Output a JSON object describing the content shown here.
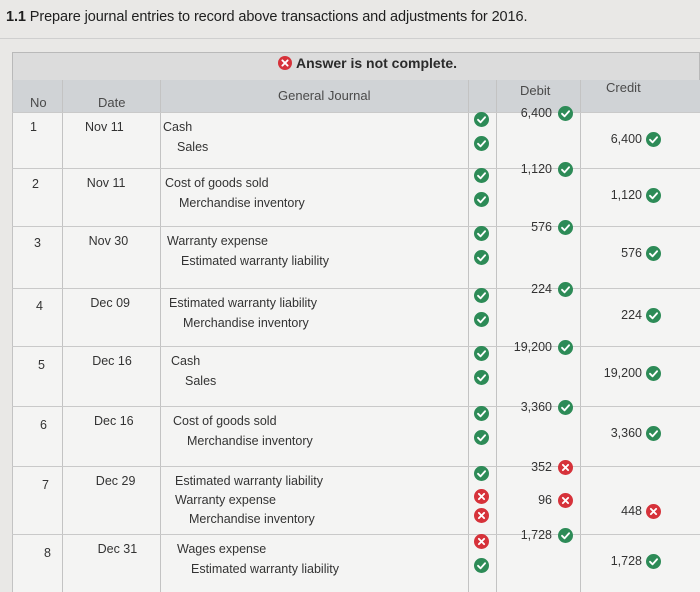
{
  "question": {
    "number": "1.1",
    "text": "Prepare journal entries to record above transactions and adjustments for 2016."
  },
  "banner": {
    "text": "Answer is not complete.",
    "icon": "x-circle-icon"
  },
  "headers": {
    "no": "No",
    "date": "Date",
    "journal": "General Journal",
    "debit": "Debit",
    "credit": "Credit"
  },
  "colors": {
    "correct": "#2d8b57",
    "incorrect": "#d6323a"
  },
  "entries": [
    {
      "no": "1",
      "date": "Nov 11",
      "lines": [
        {
          "account": "Cash",
          "indent": false,
          "status": "correct",
          "debit": "6,400",
          "debit_status": "correct",
          "credit": "",
          "credit_status": ""
        },
        {
          "account": "Sales",
          "indent": true,
          "status": "correct",
          "debit": "",
          "debit_status": "",
          "credit": "6,400",
          "credit_status": "correct"
        }
      ]
    },
    {
      "no": "2",
      "date": "Nov 11",
      "lines": [
        {
          "account": "Cost of goods sold",
          "indent": false,
          "status": "correct",
          "debit": "1,120",
          "debit_status": "correct",
          "credit": "",
          "credit_status": ""
        },
        {
          "account": "Merchandise inventory",
          "indent": true,
          "status": "correct",
          "debit": "",
          "debit_status": "",
          "credit": "1,120",
          "credit_status": "correct"
        }
      ]
    },
    {
      "no": "3",
      "date": "Nov 30",
      "lines": [
        {
          "account": "Warranty expense",
          "indent": false,
          "status": "correct",
          "debit": "576",
          "debit_status": "correct",
          "credit": "",
          "credit_status": ""
        },
        {
          "account": "Estimated warranty liability",
          "indent": true,
          "status": "correct",
          "debit": "",
          "debit_status": "",
          "credit": "576",
          "credit_status": "correct"
        }
      ]
    },
    {
      "no": "4",
      "date": "Dec 09",
      "lines": [
        {
          "account": "Estimated warranty liability",
          "indent": false,
          "status": "correct",
          "debit": "224",
          "debit_status": "correct",
          "credit": "",
          "credit_status": ""
        },
        {
          "account": "Merchandise inventory",
          "indent": true,
          "status": "correct",
          "debit": "",
          "debit_status": "",
          "credit": "224",
          "credit_status": "correct"
        }
      ]
    },
    {
      "no": "5",
      "date": "Dec 16",
      "lines": [
        {
          "account": "Cash",
          "indent": false,
          "status": "correct",
          "debit": "19,200",
          "debit_status": "correct",
          "credit": "",
          "credit_status": ""
        },
        {
          "account": "Sales",
          "indent": true,
          "status": "correct",
          "debit": "",
          "debit_status": "",
          "credit": "19,200",
          "credit_status": "correct"
        }
      ]
    },
    {
      "no": "6",
      "date": "Dec 16",
      "lines": [
        {
          "account": "Cost of goods sold",
          "indent": false,
          "status": "correct",
          "debit": "3,360",
          "debit_status": "correct",
          "credit": "",
          "credit_status": ""
        },
        {
          "account": "Merchandise inventory",
          "indent": true,
          "status": "correct",
          "debit": "",
          "debit_status": "",
          "credit": "3,360",
          "credit_status": "correct"
        }
      ]
    },
    {
      "no": "7",
      "date": "Dec 29",
      "lines": [
        {
          "account": "Estimated warranty liability",
          "indent": false,
          "status": "correct",
          "debit": "352",
          "debit_status": "incorrect",
          "credit": "",
          "credit_status": ""
        },
        {
          "account": "Warranty expense",
          "indent": false,
          "status": "incorrect",
          "debit": "96",
          "debit_status": "incorrect",
          "credit": "",
          "credit_status": ""
        },
        {
          "account": "Merchandise inventory",
          "indent": true,
          "status": "incorrect",
          "debit": "",
          "debit_status": "",
          "credit": "448",
          "credit_status": "incorrect"
        }
      ]
    },
    {
      "no": "8",
      "date": "Dec 31",
      "lines": [
        {
          "account": "Wages expense",
          "indent": false,
          "status": "incorrect",
          "debit": "1,728",
          "debit_status": "correct",
          "credit": "",
          "credit_status": ""
        },
        {
          "account": "Estimated warranty liability",
          "indent": true,
          "status": "correct",
          "debit": "",
          "debit_status": "",
          "credit": "1,728",
          "credit_status": "correct"
        }
      ]
    }
  ]
}
